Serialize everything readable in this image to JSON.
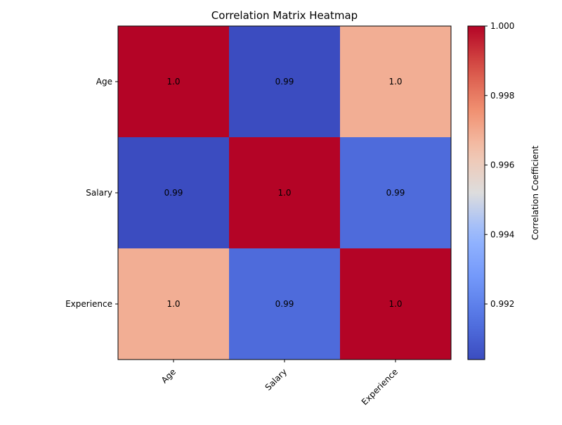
{
  "chart_data": {
    "type": "heatmap",
    "title": "Correlation Matrix Heatmap",
    "x_categories": [
      "Age",
      "Salary",
      "Experience"
    ],
    "y_categories": [
      "Age",
      "Salary",
      "Experience"
    ],
    "values": [
      [
        1.0,
        0.9904,
        0.9969
      ],
      [
        0.9904,
        1.0,
        0.9913
      ],
      [
        0.9969,
        0.9913,
        1.0
      ]
    ],
    "cell_labels": [
      [
        "1.0",
        "0.99",
        "1.0"
      ],
      [
        "0.99",
        "1.0",
        "0.99"
      ],
      [
        "1.0",
        "0.99",
        "1.0"
      ]
    ],
    "colormap": "coolwarm",
    "colorbar": {
      "label": "Correlation Coefficient",
      "range": [
        0.9904,
        1.0
      ],
      "ticks": [
        0.992,
        0.994,
        0.996,
        0.998,
        1.0
      ],
      "tick_labels": [
        "0.992",
        "0.994",
        "0.996",
        "0.998",
        "1.000"
      ]
    },
    "x_tick_rotation_deg": 45,
    "grid": false,
    "legend": "colorbar-right"
  }
}
